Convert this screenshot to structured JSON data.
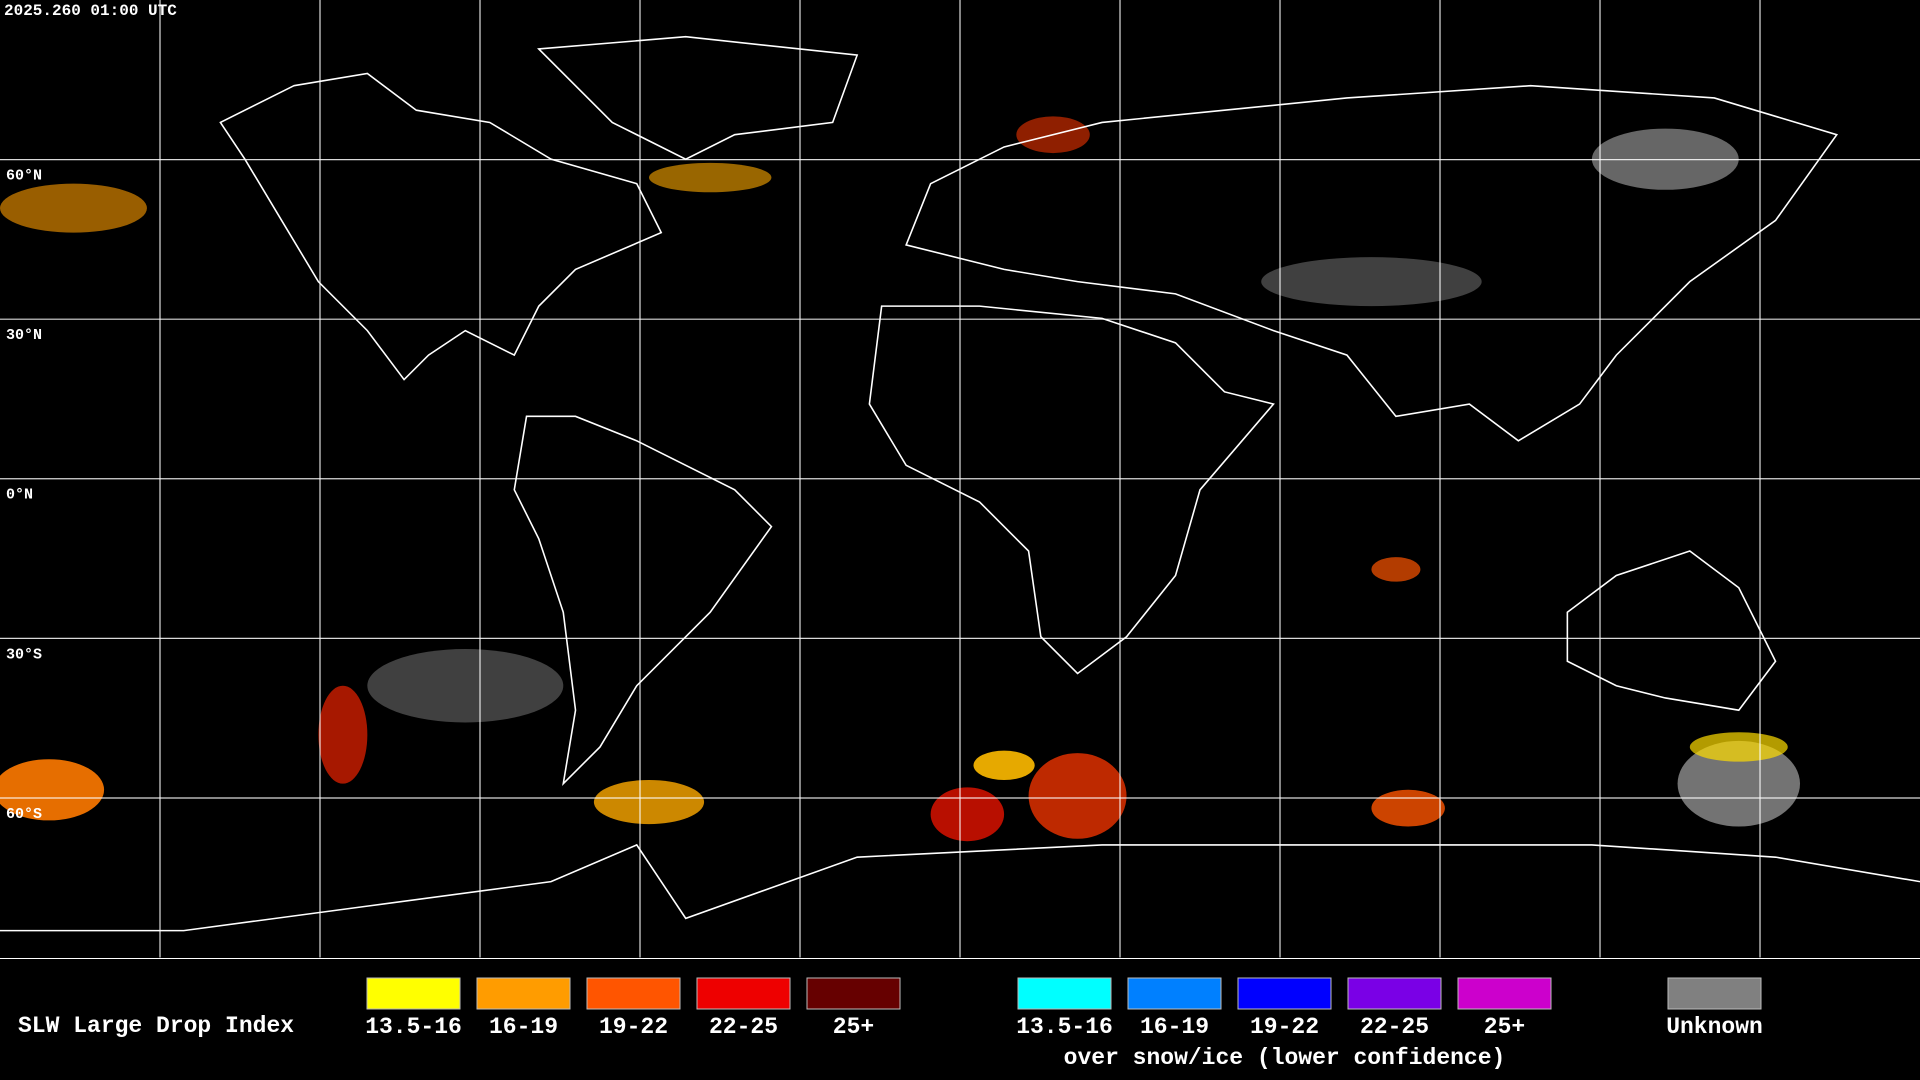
{
  "timestamp": "2025.260 01:00 UTC",
  "latitude_labels": [
    "60°N",
    "30°N",
    "0°N",
    "30°S",
    "60°S"
  ],
  "legend": {
    "title": "SLW Large Drop Index",
    "groups": [
      {
        "items": [
          {
            "label": "13.5-16",
            "color": "#ffff00"
          },
          {
            "label": "16-19",
            "color": "#ff9c00"
          },
          {
            "label": "19-22",
            "color": "#ff5500"
          },
          {
            "label": "22-25",
            "color": "#ee0000"
          },
          {
            "label": "25+",
            "color": "#660000"
          }
        ]
      },
      {
        "items": [
          {
            "label": "13.5-16",
            "color": "#00ffff"
          },
          {
            "label": "16-19",
            "color": "#0080ff"
          },
          {
            "label": "19-22",
            "color": "#0000ff"
          },
          {
            "label": "22-25",
            "color": "#7a00e6"
          },
          {
            "label": "25+",
            "color": "#cc00cc"
          }
        ],
        "caption": "over snow/ice (lower confidence)"
      }
    ],
    "unknown": {
      "label": "Unknown",
      "color": "#808080"
    }
  }
}
